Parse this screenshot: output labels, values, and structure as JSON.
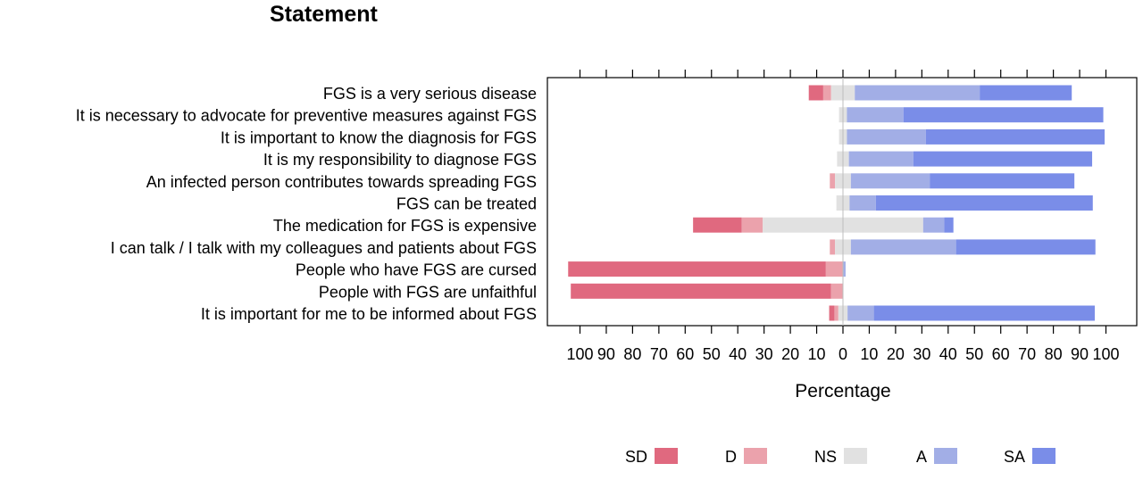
{
  "chart_data": {
    "type": "bar",
    "orientation": "horizontal",
    "stacked": "diverging",
    "title": "Statement",
    "xlabel": "Percentage",
    "ylabel": "",
    "xlim": [
      -100,
      100
    ],
    "x_ticks": [
      -100,
      -90,
      -80,
      -70,
      -60,
      -50,
      -40,
      -30,
      -20,
      -10,
      0,
      10,
      20,
      30,
      40,
      50,
      60,
      70,
      80,
      90,
      100
    ],
    "x_tick_labels": [
      "100",
      "90",
      "80",
      "70",
      "60",
      "50",
      "40",
      "30",
      "20",
      "10",
      "0",
      "10",
      "20",
      "30",
      "40",
      "50",
      "60",
      "70",
      "80",
      "90",
      "100"
    ],
    "grid": false,
    "legend_position": "bottom",
    "categories": [
      "FGS is a very serious disease",
      "It is necessary to advocate for preventive measures against FGS",
      "It is important to know the diagnosis for FGS",
      "It is my responsibility to diagnose FGS",
      "An infected person contributes towards spreading FGS",
      "FGS can be treated",
      "The medication for FGS is expensive",
      "I can talk / I talk with my colleagues and patients about FGS",
      "People who have FGS are cursed",
      "People with FGS are unfaithful",
      "It is important for me to be informed about FGS"
    ],
    "series": [
      {
        "name": "SD",
        "color": "#e0697f",
        "values": [
          5.5,
          0,
          0,
          0,
          0,
          0,
          18.5,
          0,
          98,
          99,
          2
        ]
      },
      {
        "name": "D",
        "color": "#eba2ac",
        "values": [
          3,
          0,
          0,
          0,
          2,
          0,
          8,
          2,
          6.5,
          4.5,
          1.5
        ]
      },
      {
        "name": "NS",
        "color": "#e1e1e1",
        "values": [
          9,
          3,
          3,
          4.5,
          6,
          5,
          61,
          6,
          0,
          0,
          3.5
        ]
      },
      {
        "name": "A",
        "color": "#a2aee6",
        "values": [
          47.5,
          21.5,
          30,
          24.5,
          30,
          10,
          8,
          40,
          1,
          0,
          10
        ]
      },
      {
        "name": "SA",
        "color": "#7a8de8",
        "values": [
          35,
          76,
          68,
          68,
          55,
          82.5,
          3.5,
          53,
          0,
          0,
          84
        ]
      }
    ]
  }
}
